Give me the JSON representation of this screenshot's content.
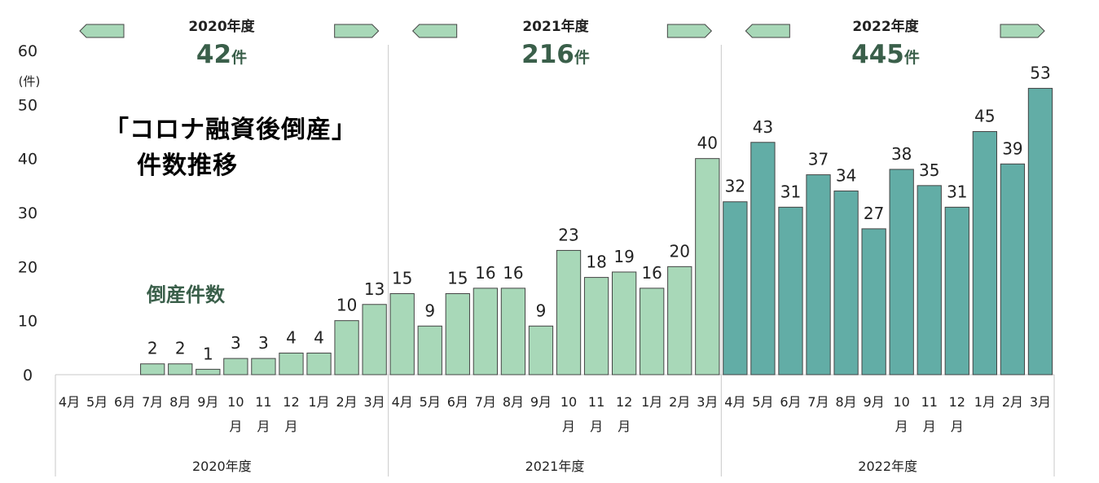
{
  "chart_data": {
    "type": "bar",
    "title": "「コロナ融資後倒産」",
    "subtitle": "件数推移",
    "series_label": "倒産件数",
    "y_unit_label": "(件)",
    "ylim": [
      0,
      60
    ],
    "y_ticks": [
      "0",
      "10",
      "20",
      "30",
      "40",
      "50",
      "60"
    ],
    "grid": false,
    "colors": {
      "light_bar": "#a8d8b8",
      "dark_bar": "#62ada6",
      "arrow": "#a8d8b8",
      "total_text": "#3a5f4a"
    },
    "years": [
      {
        "name": "2020年度",
        "total_value": "42",
        "total_unit": "件",
        "bar_color": "light",
        "categories": [
          [
            "4月"
          ],
          [
            "5月"
          ],
          [
            "6月"
          ],
          [
            "7月"
          ],
          [
            "8月"
          ],
          [
            "9月"
          ],
          [
            "10",
            "月"
          ],
          [
            "11",
            "月"
          ],
          [
            "12",
            "月"
          ],
          [
            "1月"
          ],
          [
            "2月"
          ],
          [
            "3月"
          ]
        ],
        "values": [
          null,
          null,
          null,
          2,
          2,
          1,
          3,
          3,
          4,
          4,
          10,
          13
        ]
      },
      {
        "name": "2021年度",
        "total_value": "216",
        "total_unit": "件",
        "bar_color": "light",
        "categories": [
          [
            "4月"
          ],
          [
            "5月"
          ],
          [
            "6月"
          ],
          [
            "7月"
          ],
          [
            "8月"
          ],
          [
            "9月"
          ],
          [
            "10",
            "月"
          ],
          [
            "11",
            "月"
          ],
          [
            "12",
            "月"
          ],
          [
            "1月"
          ],
          [
            "2月"
          ],
          [
            "3月"
          ]
        ],
        "values": [
          15,
          9,
          15,
          16,
          16,
          9,
          23,
          18,
          19,
          16,
          20,
          40
        ]
      },
      {
        "name": "2022年度",
        "total_value": "445",
        "total_unit": "件",
        "bar_color": "dark",
        "categories": [
          [
            "4月"
          ],
          [
            "5月"
          ],
          [
            "6月"
          ],
          [
            "7月"
          ],
          [
            "8月"
          ],
          [
            "9月"
          ],
          [
            "10",
            "月"
          ],
          [
            "11",
            "月"
          ],
          [
            "12",
            "月"
          ],
          [
            "1月"
          ],
          [
            "2月"
          ],
          [
            "3月"
          ]
        ],
        "values": [
          32,
          43,
          31,
          37,
          34,
          27,
          38,
          35,
          31,
          45,
          39,
          53
        ]
      }
    ]
  }
}
